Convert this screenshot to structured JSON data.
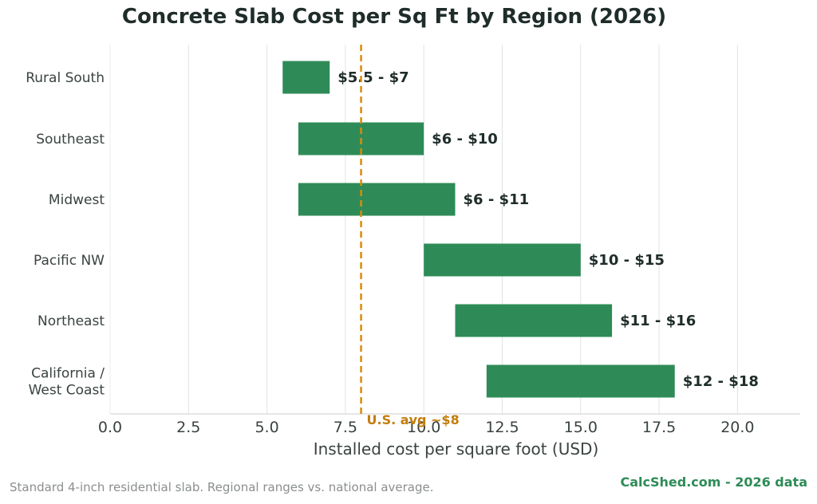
{
  "chart_data": {
    "type": "bar",
    "orientation": "horizontal",
    "title": "Concrete Slab Cost per Sq Ft by Region (2026)",
    "xlabel": "Installed cost per square foot (USD)",
    "ylabel": "",
    "xlim": [
      0,
      22
    ],
    "xticks": [
      0,
      2.5,
      5,
      7.5,
      10,
      12.5,
      15,
      17.5,
      20
    ],
    "xtick_labels": [
      "0.0",
      "2.5",
      "5.0",
      "7.5",
      "10.0",
      "12.5",
      "15.0",
      "17.5",
      "20.0"
    ],
    "grid": "vertical",
    "categories": [
      {
        "label_lines": [
          "Rural South"
        ],
        "low": 5.5,
        "high": 7,
        "data_label": "$5.5 - $7"
      },
      {
        "label_lines": [
          "Southeast"
        ],
        "low": 6,
        "high": 10,
        "data_label": "$6 - $10"
      },
      {
        "label_lines": [
          "Midwest"
        ],
        "low": 6,
        "high": 11,
        "data_label": "$6 - $11"
      },
      {
        "label_lines": [
          "Pacific NW"
        ],
        "low": 10,
        "high": 15,
        "data_label": "$10 - $15"
      },
      {
        "label_lines": [
          "Northeast"
        ],
        "low": 11,
        "high": 16,
        "data_label": "$11 - $16"
      },
      {
        "label_lines": [
          "California /",
          "West Coast"
        ],
        "low": 12,
        "high": 18,
        "data_label": "$12 - $18"
      }
    ],
    "reference_line": {
      "value": 8,
      "label": "U.S. avg ~$8",
      "color": "#d98c0b"
    },
    "bar_color": "#2e8b57"
  },
  "footer": {
    "note": "Standard 4-inch residential slab. Regional ranges vs. national average.",
    "brand": "CalcShed.com  -  2026 data"
  }
}
